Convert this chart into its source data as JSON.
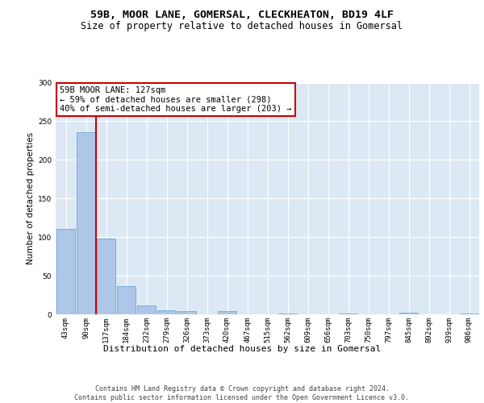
{
  "title1": "59B, MOOR LANE, GOMERSAL, CLECKHEATON, BD19 4LF",
  "title2": "Size of property relative to detached houses in Gomersal",
  "xlabel": "Distribution of detached houses by size in Gomersal",
  "ylabel": "Number of detached properties",
  "bin_labels": [
    "43sqm",
    "90sqm",
    "137sqm",
    "184sqm",
    "232sqm",
    "279sqm",
    "326sqm",
    "373sqm",
    "420sqm",
    "467sqm",
    "515sqm",
    "562sqm",
    "609sqm",
    "656sqm",
    "703sqm",
    "750sqm",
    "797sqm",
    "845sqm",
    "892sqm",
    "939sqm",
    "986sqm"
  ],
  "bar_heights": [
    111,
    236,
    98,
    37,
    12,
    5,
    4,
    0,
    4,
    0,
    0,
    1,
    0,
    0,
    1,
    0,
    0,
    2,
    0,
    0,
    1
  ],
  "bar_color": "#aec6e8",
  "bar_edge_color": "#5a9fd4",
  "vline_x_idx": 1,
  "vline_color": "#cc0000",
  "annotation_text": "59B MOOR LANE: 127sqm\n← 59% of detached houses are smaller (298)\n40% of semi-detached houses are larger (203) →",
  "annotation_box_color": "#ffffff",
  "annotation_box_edge": "#cc0000",
  "ylim": [
    0,
    300
  ],
  "yticks": [
    0,
    50,
    100,
    150,
    200,
    250,
    300
  ],
  "background_color": "#dce9f5",
  "footer_text": "Contains HM Land Registry data © Crown copyright and database right 2024.\nContains public sector information licensed under the Open Government Licence v3.0.",
  "title1_fontsize": 9.5,
  "title2_fontsize": 8.5,
  "xlabel_fontsize": 8,
  "ylabel_fontsize": 7.5,
  "tick_fontsize": 6.5,
  "annotation_fontsize": 7.5,
  "footer_fontsize": 6
}
